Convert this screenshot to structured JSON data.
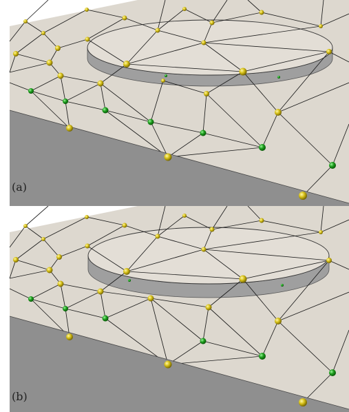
{
  "figure": {
    "panels": [
      {
        "id": "a",
        "label": "(a)"
      },
      {
        "id": "b",
        "label": "(b)"
      }
    ]
  },
  "colors": {
    "top_surface": "#ddd8cf",
    "side_face": "#8f8f8f",
    "disk_side": "#9f9f9f",
    "edge_line": "#1a1a1a",
    "node_yellow": "#d8c21a",
    "node_green": "#1fa01f"
  },
  "legend": {
    "node_types": [
      "yellow-node",
      "green-node"
    ]
  }
}
